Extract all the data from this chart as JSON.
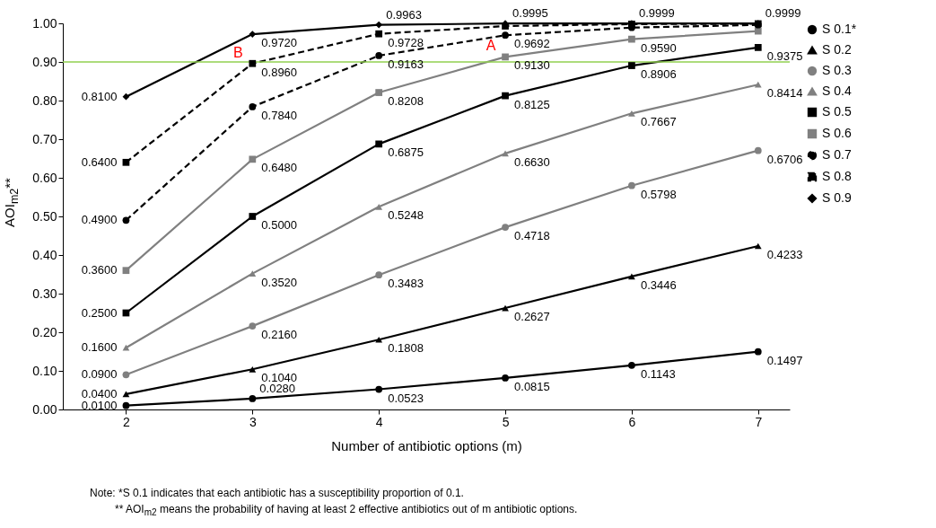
{
  "chart_data": {
    "type": "line",
    "xlabel": "Number of antibiotic options (m)",
    "ylabel": "AOI$_{m2}$**",
    "x": [
      2,
      3,
      4,
      5,
      6,
      7
    ],
    "xlim": [
      1.5,
      7.25
    ],
    "xticks": [
      2,
      3,
      4,
      5,
      6,
      7
    ],
    "ylim": [
      0,
      1
    ],
    "yticks": [
      {
        "value": 0,
        "label": "0.00"
      },
      {
        "value": 0.1,
        "label": "0.10"
      },
      {
        "value": 0.2,
        "label": "0.20"
      },
      {
        "value": 0.3,
        "label": "0.30"
      },
      {
        "value": 0.4,
        "label": "0.40"
      },
      {
        "value": 0.5,
        "label": "0.50"
      },
      {
        "value": 0.6,
        "label": "0.60"
      },
      {
        "value": 0.7,
        "label": "0.70"
      },
      {
        "value": 0.8,
        "label": "0.80"
      },
      {
        "value": 0.9,
        "label": "0.90"
      },
      {
        "value": 1,
        "label": "1.00"
      }
    ],
    "grid": false,
    "legend": "right",
    "series": [
      {
        "name": "S 0.1*",
        "color": "#000000",
        "marker": "circle",
        "line_style": "solid",
        "values": [
          0.01,
          0.028,
          0.0523,
          0.0815,
          0.1143,
          0.1497
        ],
        "value_labels": [
          "0.0100",
          "0.0280",
          "0.0523",
          "0.0815",
          "0.1143",
          "0.1497"
        ]
      },
      {
        "name": "S 0.2",
        "color": "#000000",
        "marker": "triangle",
        "line_style": "solid",
        "values": [
          0.04,
          0.104,
          0.1808,
          0.2627,
          0.3446,
          0.4233
        ],
        "value_labels": [
          "0.0400",
          "0.1040",
          "0.1808",
          "0.2627",
          "0.3446",
          "0.4233"
        ]
      },
      {
        "name": "S 0.3",
        "color": "#808080",
        "marker": "circle",
        "line_style": "solid",
        "values": [
          0.09,
          0.216,
          0.3483,
          0.4718,
          0.5798,
          0.6706
        ],
        "value_labels": [
          "0.0900",
          "0.2160",
          "0.3483",
          "0.4718",
          "0.5798",
          "0.6706"
        ]
      },
      {
        "name": "S 0.4",
        "color": "#808080",
        "marker": "triangle",
        "line_style": "solid",
        "values": [
          0.16,
          0.352,
          0.5248,
          0.663,
          0.7667,
          0.8414
        ],
        "value_labels": [
          "0.1600",
          "0.3520",
          "0.5248",
          "0.6630",
          "0.7667",
          "0.8414"
        ]
      },
      {
        "name": "S 0.5",
        "color": "#000000",
        "marker": "square",
        "line_style": "solid",
        "values": [
          0.25,
          0.5,
          0.6875,
          0.8125,
          0.8906,
          0.9375
        ],
        "value_labels": [
          "0.2500",
          "0.5000",
          "0.6875",
          "0.8125",
          "0.8906",
          "0.9375"
        ]
      },
      {
        "name": "S 0.6",
        "color": "#808080",
        "marker": "square",
        "line_style": "solid",
        "values": [
          0.36,
          0.648,
          0.8208,
          0.913,
          0.959,
          0.98
        ],
        "value_labels": [
          "0.3600",
          "0.6480",
          "0.8208",
          "0.9130",
          "0.9590",
          null
        ]
      },
      {
        "name": "S 0.7",
        "color": "#000000",
        "marker": "circle",
        "line_style": "dashed",
        "values": [
          0.49,
          0.784,
          0.9163,
          0.9692,
          0.989,
          0.996
        ],
        "value_labels": [
          "0.4900",
          "0.7840",
          "0.9163",
          "0.9692",
          null,
          null
        ]
      },
      {
        "name": "S 0.8",
        "color": "#000000",
        "marker": "square",
        "line_style": "dashed",
        "values": [
          0.64,
          0.896,
          0.9728,
          0.993,
          0.998,
          0.999
        ],
        "value_labels": [
          "0.6400",
          "0.8960",
          "0.9728",
          null,
          null,
          null
        ]
      },
      {
        "name": "S 0.9",
        "color": "#000000",
        "marker": "diamond",
        "line_style": "solid",
        "values": [
          0.81,
          0.972,
          0.9963,
          0.9995,
          0.9999,
          0.9999
        ],
        "value_labels": [
          "0.8100",
          "0.9720",
          "0.9963",
          "0.9995",
          "0.9999",
          "0.9999"
        ]
      }
    ],
    "ref_lines": [
      {
        "axis": "y",
        "value": 0.9,
        "color": "#92d050"
      }
    ],
    "annotations": [
      {
        "text": "A",
        "x": 5,
        "y": 0.913
      },
      {
        "text": "B",
        "x": 3,
        "y": 0.896
      },
      "Note: *S 0.1 indicates that each antibiotic has a susceptibility proportion of 0.1.",
      "** AOI$_{m2}$ means the probability of having at least 2 effective antibiotics out of m antibiotic options."
    ]
  }
}
